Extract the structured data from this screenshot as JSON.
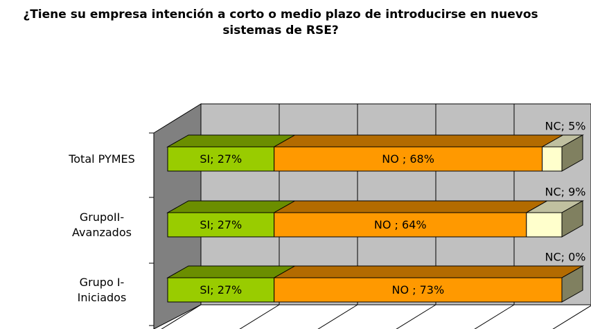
{
  "chart_data": {
    "type": "bar3d_stacked_h",
    "title": "¿Tiene su empresa intención a corto o medio plazo de introducirse en nuevos sistemas de RSE?",
    "categories": [
      "Total PYMES",
      "GrupoII-Avanzados",
      "Grupo I-Iniciados"
    ],
    "series": [
      {
        "color": "#99cc00",
        "values": [
          27,
          27,
          27
        ],
        "value_labels": [
          "SI; 27%",
          "SI; 27%",
          "SI; 27%"
        ]
      },
      {
        "color": "#ff9900",
        "values": [
          68,
          64,
          73
        ],
        "value_labels": [
          "NO ; 68%",
          "NO ; 64%",
          "NO ; 73%"
        ]
      },
      {
        "color": "#ffffcc",
        "values": [
          5,
          9,
          0
        ],
        "value_labels": [
          "NC; 5%",
          "NC; 9%",
          "NC; 0%"
        ]
      }
    ],
    "xlim": [
      0,
      100
    ],
    "xticks": [
      0,
      20,
      40,
      60,
      80,
      100
    ],
    "grid": true
  }
}
